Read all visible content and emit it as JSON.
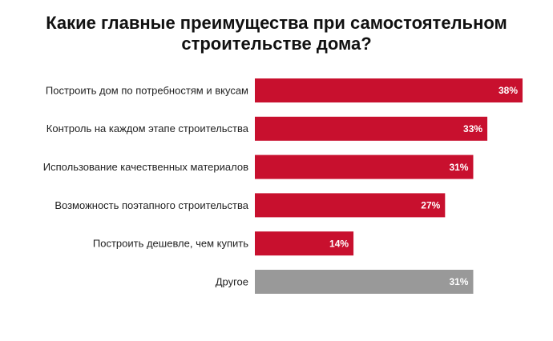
{
  "chart_data": {
    "type": "bar",
    "orientation": "horizontal",
    "title": "Какие главные преимущества при самостоятельном строительстве дома?",
    "categories": [
      "Построить дом по потребностям и вкусам",
      "Контроль на каждом этапе строительства",
      "Использование качественных материалов",
      "Возможность поэтапного строительства",
      "Построить дешевле, чем купить",
      "Другое"
    ],
    "values": [
      38,
      33,
      31,
      27,
      14,
      31
    ],
    "value_labels": [
      "38%",
      "33%",
      "31%",
      "27%",
      "14%",
      "31%"
    ],
    "colors": [
      "#c8102e",
      "#c8102e",
      "#c8102e",
      "#c8102e",
      "#c8102e",
      "#999999"
    ]
  }
}
